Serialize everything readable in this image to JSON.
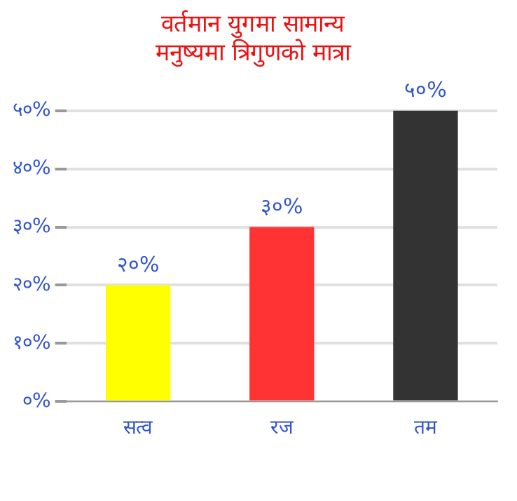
{
  "chart_data": {
    "type": "bar",
    "title": "वर्तमान युगमा सामान्य\nमनुष्यमा त्रिगुणको मात्रा",
    "categories": [
      "सत्व",
      "रज",
      "तम"
    ],
    "values": [
      20,
      30,
      50
    ],
    "colors": [
      "#ffff00",
      "#ff3333",
      "#333333"
    ],
    "value_labels": [
      "२०%",
      "३०%",
      "५०%"
    ],
    "ylim": [
      0,
      50
    ],
    "yticks": [
      {
        "value": 0,
        "label": "०%"
      },
      {
        "value": 10,
        "label": "१०%"
      },
      {
        "value": 20,
        "label": "२०%"
      },
      {
        "value": 30,
        "label": "३०%"
      },
      {
        "value": 40,
        "label": "४०%"
      },
      {
        "value": 50,
        "label": "५०%"
      }
    ],
    "grid": "y"
  }
}
